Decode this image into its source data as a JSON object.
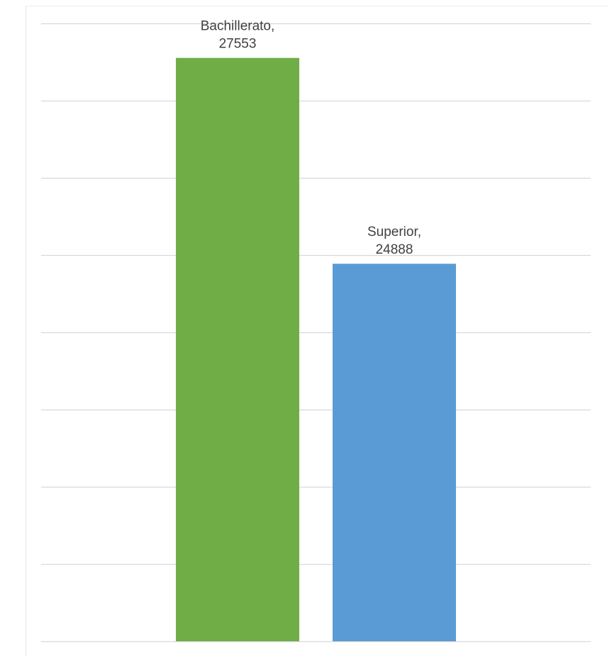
{
  "chart_data": {
    "type": "bar",
    "categories": [
      "Bachillerato",
      "Superior"
    ],
    "values": [
      27553,
      24888
    ],
    "data_labels": [
      [
        "Bachillerato,",
        "27553"
      ],
      [
        "Superior,",
        "24888"
      ]
    ],
    "title": "",
    "xlabel": "",
    "ylabel": "",
    "ylim": [
      20000,
      28000
    ],
    "gridlines": [
      20000,
      21000,
      22000,
      23000,
      24000,
      25000,
      26000,
      27000,
      28000
    ],
    "grid": true,
    "legend": "none",
    "colors": [
      "#70AD47",
      "#5B9BD5"
    ],
    "gridline_color": "#d9d9d9"
  }
}
